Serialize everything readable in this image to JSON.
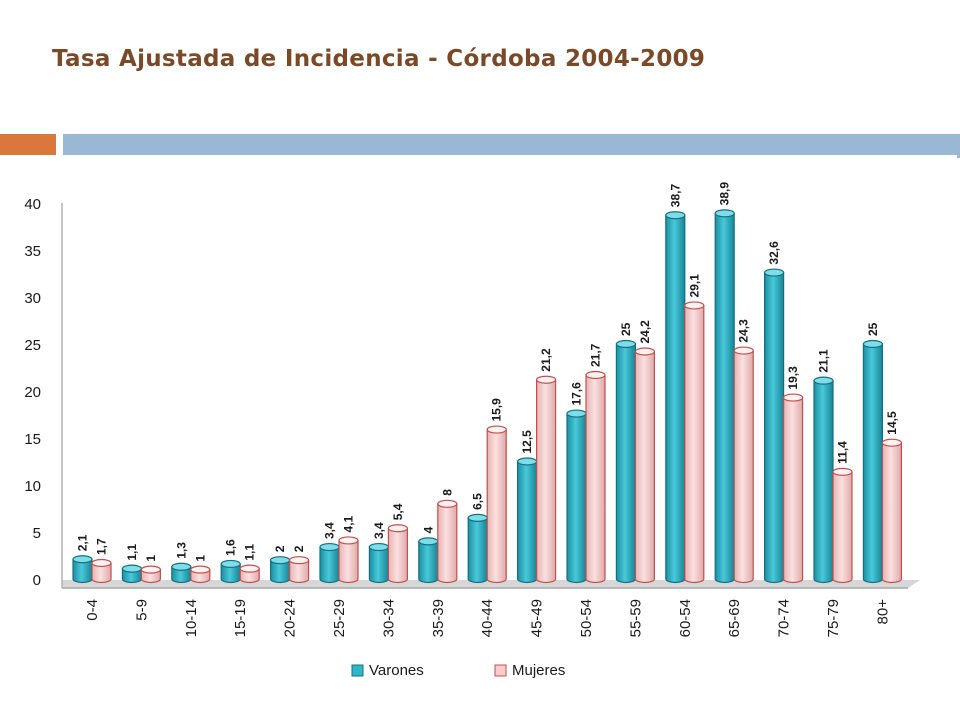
{
  "title": "Tasa Ajustada de Incidencia - Córdoba 2004-2009",
  "colors": {
    "title": "#7a4a28",
    "accent_orange": "#d9783a",
    "accent_blue": "#98b8d3",
    "varones": "#2fb6c8",
    "mujeres": "#f6cccc"
  },
  "chart_data": {
    "type": "bar",
    "title": "",
    "xlabel": "",
    "ylabel": "",
    "ylim": [
      0,
      40
    ],
    "yticks": [
      0,
      5,
      10,
      15,
      20,
      25,
      30,
      35,
      40
    ],
    "grid": false,
    "legend_position": "bottom",
    "categories": [
      "0-4",
      "5-9",
      "10-14",
      "15-19",
      "20-24",
      "25-29",
      "30-34",
      "35-39",
      "40-44",
      "45-49",
      "50-54",
      "55-59",
      "60-54",
      "65-69",
      "70-74",
      "75-79",
      "80+"
    ],
    "series": [
      {
        "name": "Varones",
        "values": [
          2.1,
          1.1,
          1.3,
          1.6,
          2,
          3.4,
          3.4,
          4,
          6.5,
          12.5,
          17.6,
          25,
          38.7,
          38.9,
          32.6,
          21.1,
          25
        ],
        "labels": [
          "2,1",
          "1,1",
          "1,3",
          "1,6",
          "2",
          "3,4",
          "3,4",
          "4",
          "6,5",
          "12,5",
          "17,6",
          "25",
          "38,7",
          "38,9",
          "32,6",
          "21,1",
          "25"
        ]
      },
      {
        "name": "Mujeres",
        "values": [
          1.7,
          1,
          1,
          1.1,
          2,
          4.1,
          5.4,
          8,
          15.9,
          21.2,
          21.7,
          24.2,
          29.1,
          24.3,
          19.3,
          11.4,
          14.5
        ],
        "labels": [
          "1,7",
          "1",
          "1",
          "1,1",
          "2",
          "4,1",
          "5,4",
          "8",
          "15,9",
          "21,2",
          "21,7",
          "24,2",
          "29,1",
          "24,3",
          "19,3",
          "11,4",
          "14,5"
        ]
      }
    ]
  }
}
